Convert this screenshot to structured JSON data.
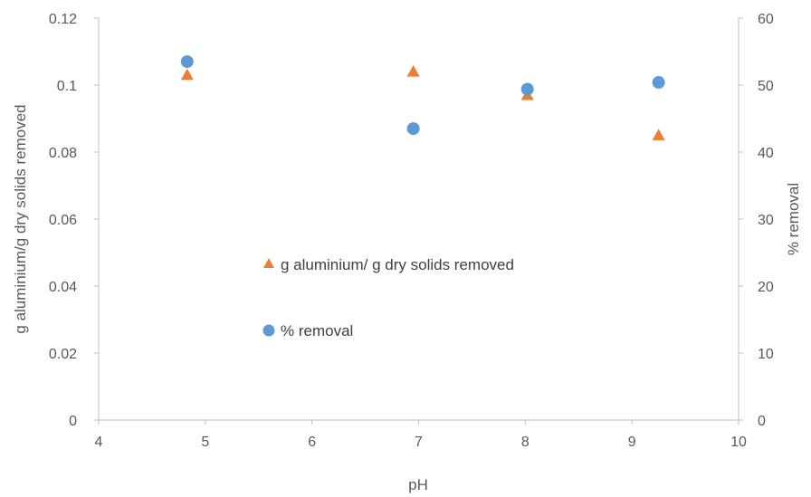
{
  "chart_data": {
    "type": "scatter",
    "xlabel": "pH",
    "ylabel": "g aluminium/g dry solids removed",
    "y2label": "% removal",
    "xlim": [
      4,
      10
    ],
    "xticks": [
      "4",
      "5",
      "6",
      "7",
      "8",
      "9",
      "10"
    ],
    "ylim": [
      0,
      0.12
    ],
    "yticks": [
      "0",
      "0.02",
      "0.04",
      "0.06",
      "0.08",
      "0.1",
      "0.12"
    ],
    "y2lim": [
      0,
      60
    ],
    "y2ticks": [
      "0",
      "10",
      "20",
      "30",
      "40",
      "50",
      "60"
    ],
    "grid": false,
    "legend_position": "center",
    "series": [
      {
        "name": "g aluminium/ g dry solids removed",
        "axis": "left",
        "marker": "triangle",
        "color": "#ED7D31",
        "points": [
          {
            "x": 4.83,
            "y": 0.103
          },
          {
            "x": 6.95,
            "y": 0.104
          },
          {
            "x": 8.02,
            "y": 0.097
          },
          {
            "x": 9.25,
            "y": 0.085
          }
        ]
      },
      {
        "name": "% removal",
        "axis": "right",
        "marker": "circle",
        "color": "#5B9BD5",
        "points": [
          {
            "x": 4.83,
            "y": 53.5
          },
          {
            "x": 6.95,
            "y": 43.5
          },
          {
            "x": 8.02,
            "y": 49.4
          },
          {
            "x": 9.25,
            "y": 50.4
          }
        ]
      }
    ]
  }
}
